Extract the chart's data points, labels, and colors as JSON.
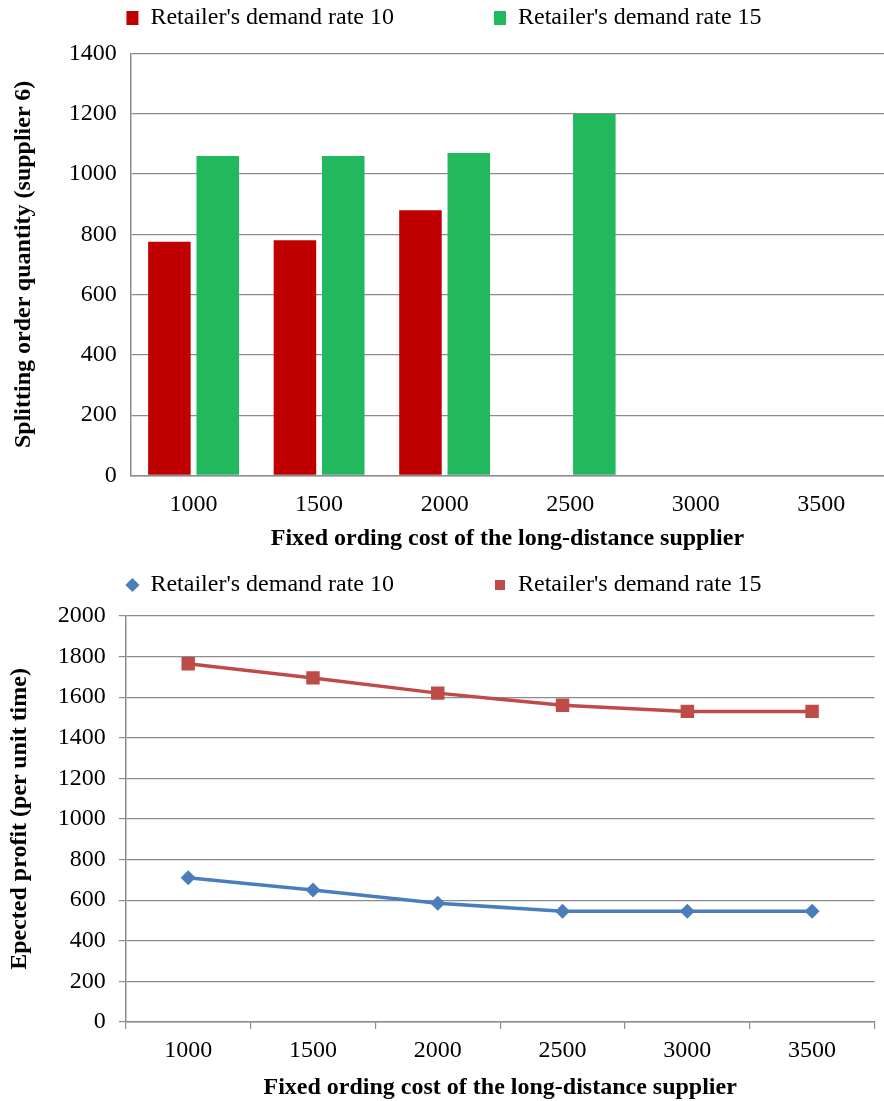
{
  "chart_data": [
    {
      "type": "bar",
      "categories": [
        "1000",
        "1500",
        "2000",
        "2500",
        "3000",
        "3500"
      ],
      "series": [
        {
          "name": "Retailer's demand rate 10",
          "color": "#c00000",
          "values": [
            775,
            780,
            880,
            null,
            null,
            null
          ]
        },
        {
          "name": "Retailer's demand rate 15",
          "color": "#22b85e",
          "values": [
            1060,
            1060,
            1070,
            1200,
            null,
            null
          ]
        }
      ],
      "xlabel": "Fixed ording cost of the long-distance supplier",
      "ylabel": "Splitting order quantity (supplier 6)",
      "ylim": [
        0,
        1400
      ],
      "yticks": [
        0,
        200,
        400,
        600,
        800,
        1000,
        1200,
        1400
      ],
      "grid": "y",
      "legend": "top"
    },
    {
      "type": "line",
      "categories": [
        "1000",
        "1500",
        "2000",
        "2500",
        "3000",
        "3500"
      ],
      "series": [
        {
          "name": "Retailer's demand rate 10",
          "color": "#4a7ebb",
          "marker": "diamond",
          "values": [
            710,
            650,
            585,
            545,
            545,
            545
          ]
        },
        {
          "name": "Retailer's demand rate 15",
          "color": "#be4b48",
          "marker": "square",
          "values": [
            1765,
            1695,
            1620,
            1560,
            1530,
            1530
          ]
        }
      ],
      "xlabel": "Fixed ording cost of the long-distance supplier",
      "ylabel": "Epected profit (per unit time)",
      "ylim": [
        0,
        2000
      ],
      "yticks": [
        0,
        200,
        400,
        600,
        800,
        1000,
        1200,
        1400,
        1600,
        1800,
        2000
      ],
      "grid": "y",
      "legend": "top",
      "line_style": "solid"
    }
  ]
}
